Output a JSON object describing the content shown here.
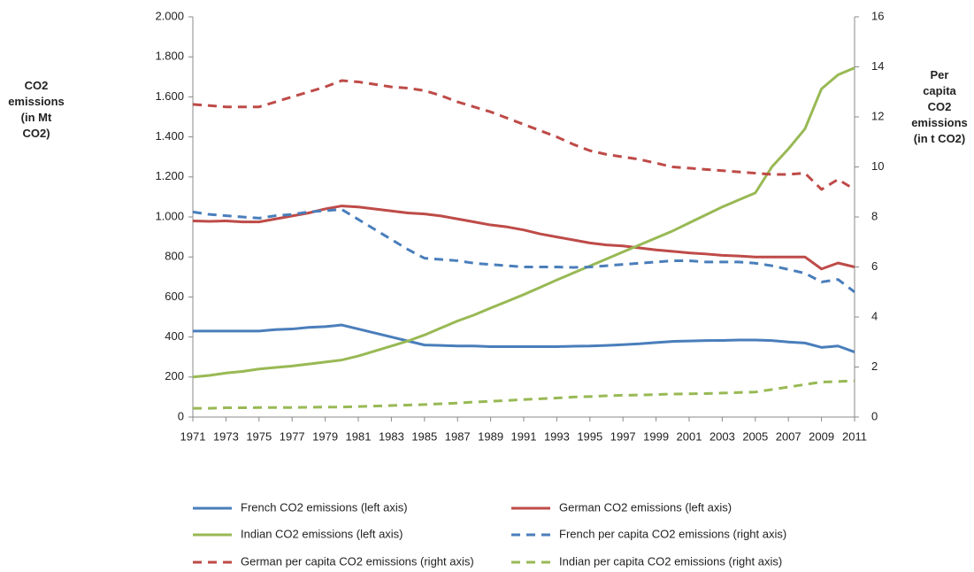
{
  "chart_data": {
    "type": "line",
    "x": [
      1971,
      1972,
      1973,
      1974,
      1975,
      1976,
      1977,
      1978,
      1979,
      1980,
      1981,
      1982,
      1983,
      1984,
      1985,
      1986,
      1987,
      1988,
      1989,
      1990,
      1991,
      1992,
      1993,
      1994,
      1995,
      1996,
      1997,
      1998,
      1999,
      2000,
      2001,
      2002,
      2003,
      2004,
      2005,
      2006,
      2007,
      2008,
      2009,
      2010,
      2011
    ],
    "xlim": [
      1971,
      2011
    ],
    "xticks": [
      1971,
      1973,
      1975,
      1977,
      1979,
      1981,
      1983,
      1985,
      1987,
      1989,
      1991,
      1993,
      1995,
      1997,
      1999,
      2001,
      2003,
      2005,
      2007,
      2009,
      2011
    ],
    "ylabel": "CO2\nemissions\n(in Mt\nCO2)",
    "y2label": "Per\ncapita\nCO2\nemissions\n(in t CO2)",
    "ylim": [
      0,
      2000
    ],
    "yticks": [
      0,
      200,
      400,
      600,
      800,
      {
        "value": 1000,
        "label": "1.000"
      },
      {
        "value": 1200,
        "label": "1.200"
      },
      {
        "value": 1400,
        "label": "1.400"
      },
      {
        "value": 1600,
        "label": "1.600"
      },
      {
        "value": 1800,
        "label": "1.800"
      },
      {
        "value": 2000,
        "label": "2.000"
      }
    ],
    "y2lim": [
      0,
      16
    ],
    "y2ticks": [
      0,
      2,
      4,
      6,
      8,
      10,
      12,
      14,
      16
    ],
    "series": [
      {
        "name": "French CO2 emissions (left axis)",
        "color": "#4a7ebb",
        "line_style": "solid",
        "axis": "y",
        "values": [
          430,
          430,
          430,
          430,
          430,
          437,
          440,
          448,
          452,
          460,
          440,
          420,
          400,
          380,
          360,
          358,
          355,
          355,
          352,
          352,
          352,
          352,
          352,
          354,
          355,
          358,
          362,
          366,
          372,
          378,
          380,
          382,
          383,
          385,
          385,
          382,
          375,
          370,
          348,
          355,
          325
        ]
      },
      {
        "name": "German CO2 emissions (left axis)",
        "color": "#be4b48",
        "line_style": "solid",
        "axis": "y",
        "values": [
          980,
          978,
          980,
          975,
          975,
          990,
          1005,
          1020,
          1040,
          1055,
          1050,
          1040,
          1030,
          1020,
          1015,
          1005,
          990,
          975,
          960,
          950,
          935,
          915,
          900,
          885,
          870,
          860,
          855,
          845,
          835,
          828,
          820,
          815,
          808,
          805,
          800,
          800,
          800,
          800,
          740,
          770,
          750
        ]
      },
      {
        "name": "Indian CO2 emissions (left axis)",
        "color": "#98b954",
        "line_style": "solid",
        "axis": "y",
        "values": [
          200,
          208,
          220,
          228,
          240,
          248,
          255,
          265,
          275,
          285,
          305,
          330,
          355,
          380,
          410,
          445,
          480,
          510,
          545,
          578,
          612,
          648,
          685,
          720,
          755,
          790,
          825,
          860,
          895,
          930,
          970,
          1010,
          1050,
          1085,
          1120,
          1250,
          1340,
          1440,
          1640,
          1710,
          1745
        ]
      },
      {
        "name": "French per capita CO2 emissions (right axis)",
        "color": "#4a7ebb",
        "line_style": "dashed",
        "axis": "y2",
        "values": [
          8.2,
          8.1,
          8.05,
          8.0,
          7.95,
          8.05,
          8.1,
          8.2,
          8.25,
          8.3,
          7.9,
          7.5,
          7.1,
          6.7,
          6.35,
          6.3,
          6.25,
          6.15,
          6.1,
          6.05,
          6.0,
          6.0,
          6.0,
          5.98,
          6.0,
          6.05,
          6.1,
          6.15,
          6.2,
          6.25,
          6.25,
          6.2,
          6.2,
          6.2,
          6.15,
          6.05,
          5.9,
          5.75,
          5.4,
          5.5,
          5.0
        ]
      },
      {
        "name": "German per capita CO2 emissions (right axis)",
        "color": "#be4b48",
        "line_style": "dashed",
        "axis": "y2",
        "values": [
          12.5,
          12.45,
          12.4,
          12.4,
          12.4,
          12.6,
          12.8,
          13.0,
          13.2,
          13.45,
          13.4,
          13.3,
          13.2,
          13.15,
          13.05,
          12.85,
          12.6,
          12.4,
          12.2,
          11.95,
          11.7,
          11.45,
          11.2,
          10.9,
          10.65,
          10.5,
          10.4,
          10.3,
          10.15,
          10.0,
          9.95,
          9.9,
          9.85,
          9.8,
          9.75,
          9.7,
          9.7,
          9.75,
          9.1,
          9.5,
          9.1
        ]
      },
      {
        "name": "Indian per capita CO2 emissions (right axis)",
        "color": "#98b954",
        "line_style": "dashed",
        "axis": "y2",
        "values": [
          0.35,
          0.35,
          0.37,
          0.37,
          0.38,
          0.38,
          0.38,
          0.39,
          0.4,
          0.4,
          0.42,
          0.44,
          0.46,
          0.48,
          0.5,
          0.53,
          0.56,
          0.6,
          0.63,
          0.66,
          0.7,
          0.73,
          0.76,
          0.8,
          0.82,
          0.85,
          0.87,
          0.88,
          0.9,
          0.92,
          0.93,
          0.94,
          0.96,
          0.98,
          1.0,
          1.1,
          1.2,
          1.3,
          1.4,
          1.42,
          1.45
        ]
      }
    ]
  }
}
